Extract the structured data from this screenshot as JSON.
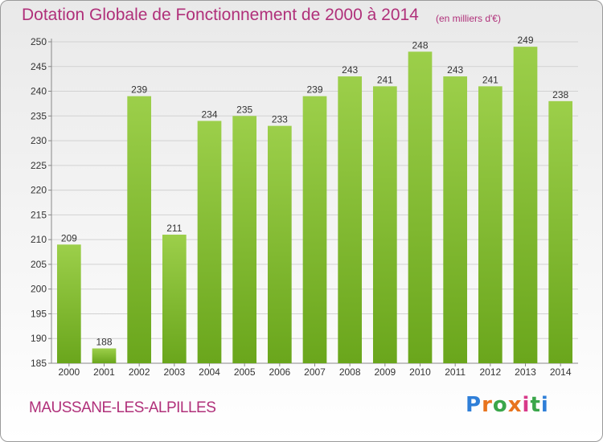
{
  "header": {
    "title": "Dotation Globale de Fonctionnement de 2000 à 2014",
    "unit": "(en milliers d'€)"
  },
  "footer": {
    "commune": "MAUSSANE-LES-ALPILLES",
    "logo": [
      "P",
      "r",
      "o",
      "x",
      "i",
      "t",
      "i"
    ],
    "logo_colors": [
      "#2f7fd8",
      "#e8741e",
      "#3aa64a",
      "#e8741e",
      "#d83a8a",
      "#3aa64a",
      "#2f7fd8"
    ]
  },
  "chart_data": {
    "type": "bar",
    "title": "Dotation Globale de Fonctionnement de 2000 à 2014",
    "subtitle": "(en milliers d'€)",
    "categories": [
      "2000",
      "2001",
      "2002",
      "2003",
      "2004",
      "2005",
      "2006",
      "2007",
      "2008",
      "2009",
      "2010",
      "2011",
      "2012",
      "2013",
      "2014"
    ],
    "values": [
      209,
      188,
      239,
      211,
      234,
      235,
      233,
      239,
      243,
      241,
      248,
      243,
      241,
      249,
      238
    ],
    "ylim": [
      185,
      250
    ],
    "yticks": [
      185,
      190,
      195,
      200,
      205,
      210,
      215,
      220,
      225,
      230,
      235,
      240,
      245,
      250
    ],
    "grid": true,
    "bar_color_top": "#9ccf4a",
    "bar_color_bottom": "#6aa61c"
  }
}
